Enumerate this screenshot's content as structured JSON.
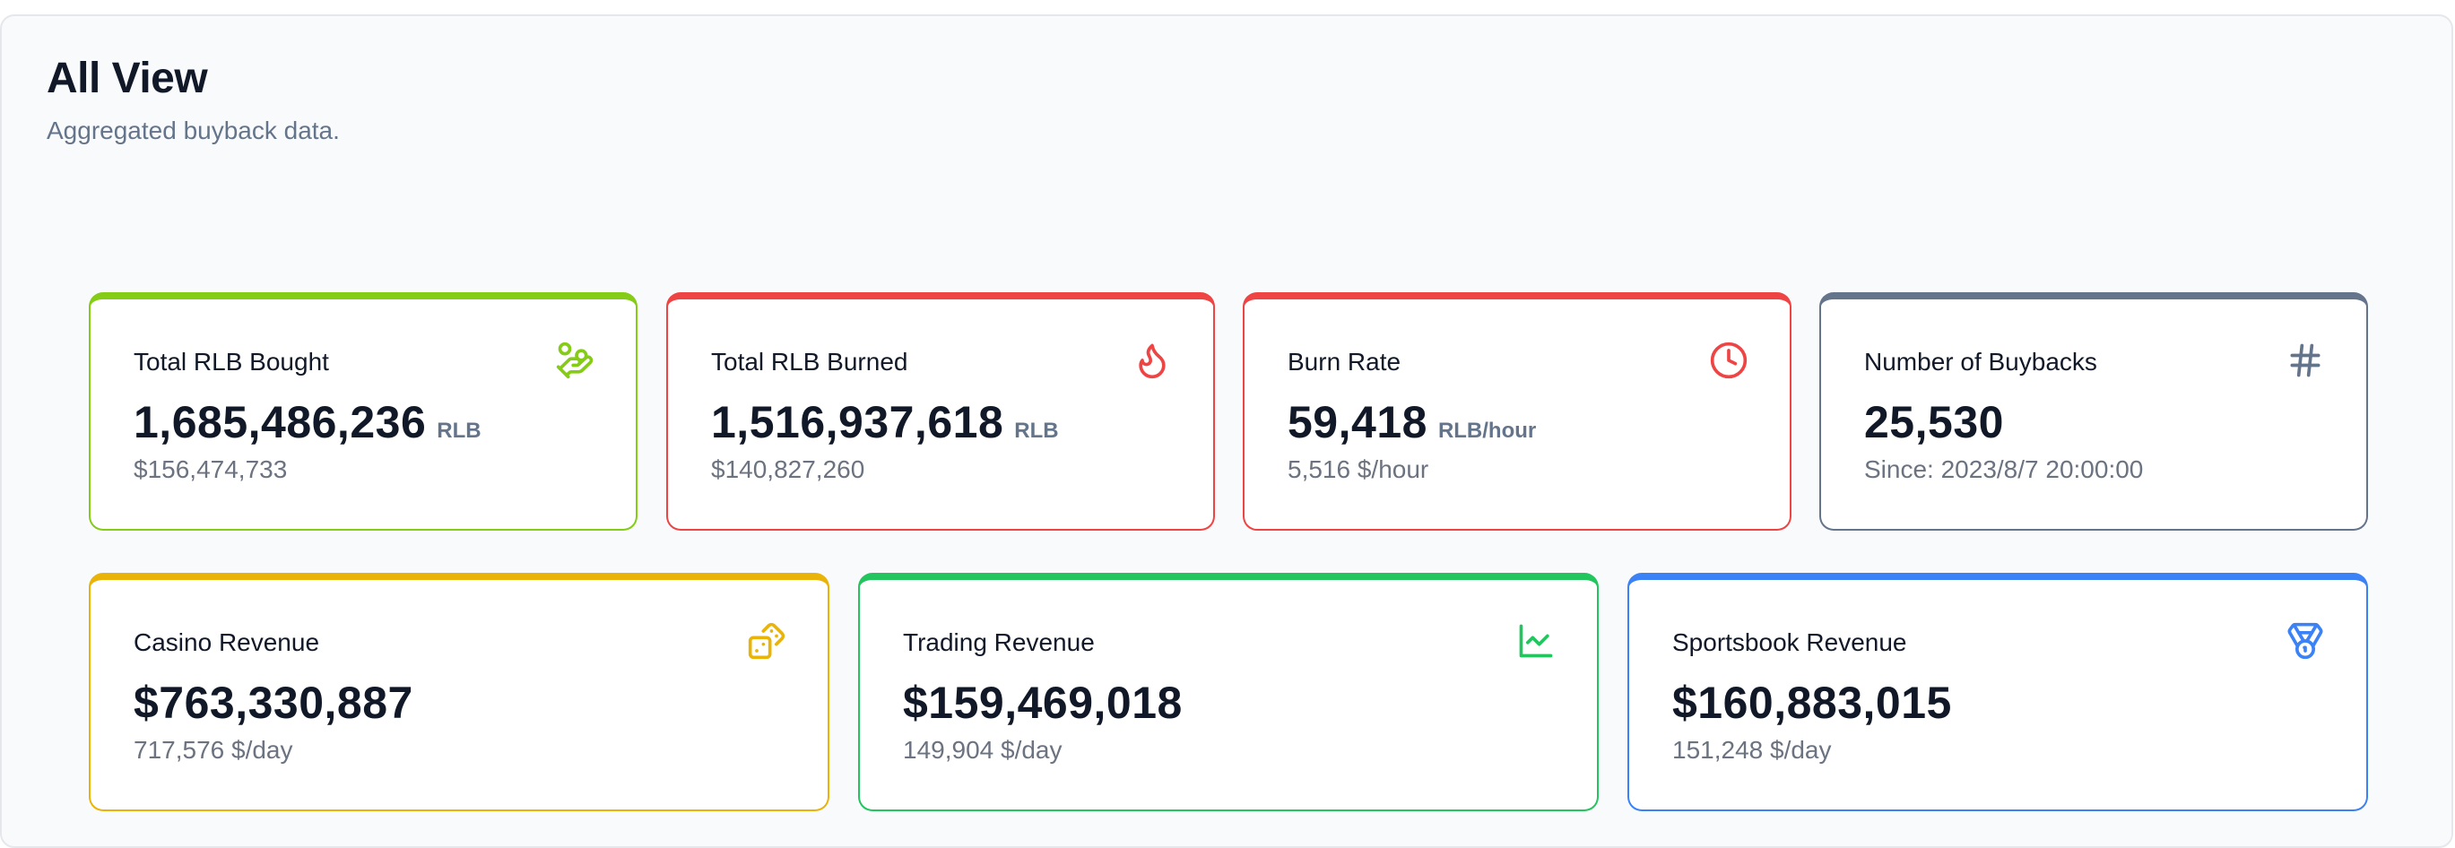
{
  "header": {
    "title": "All View",
    "subtitle": "Aggregated buyback data."
  },
  "cards": {
    "bought": {
      "label": "Total RLB Bought",
      "value": "1,685,486,236",
      "unit": "RLB",
      "sub": "$156,474,733",
      "icon": "hand-coins-icon",
      "color": "#84cc16"
    },
    "burned": {
      "label": "Total RLB Burned",
      "value": "1,516,937,618",
      "unit": "RLB",
      "sub": "$140,827,260",
      "icon": "flame-icon",
      "color": "#ef4444"
    },
    "rate": {
      "label": "Burn Rate",
      "value": "59,418",
      "unit": "RLB/hour",
      "sub": "5,516 $/hour",
      "icon": "clock-icon",
      "color": "#ef4444"
    },
    "buybacks": {
      "label": "Number of Buybacks",
      "value": "25,530",
      "unit": "",
      "sub": "Since: 2023/8/7 20:00:00",
      "icon": "hash-icon",
      "color": "#64748b"
    },
    "casino": {
      "label": "Casino Revenue",
      "value": "$763,330,887",
      "unit": "",
      "sub": "717,576 $/day",
      "icon": "dice-icon",
      "color": "#eab308"
    },
    "trading": {
      "label": "Trading Revenue",
      "value": "$159,469,018",
      "unit": "",
      "sub": "149,904 $/day",
      "icon": "line-chart-icon",
      "color": "#22c55e"
    },
    "sports": {
      "label": "Sportsbook Revenue",
      "value": "$160,883,015",
      "unit": "",
      "sub": "151,248 $/day",
      "icon": "medal-icon",
      "color": "#3b82f6"
    }
  }
}
